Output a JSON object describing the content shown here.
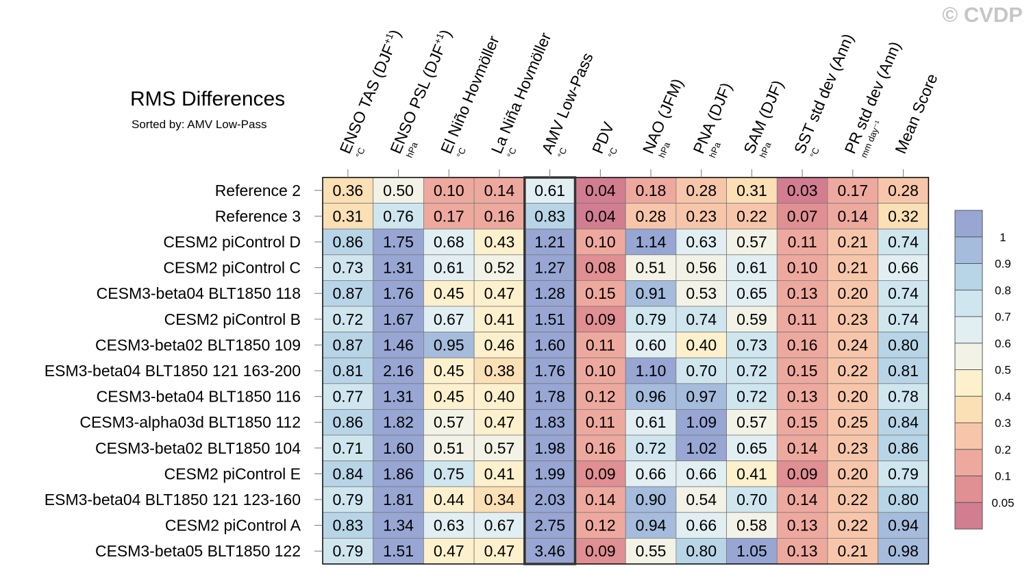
{
  "title": "RMS Differences",
  "subtitle": "Sorted by: AMV Low-Pass",
  "watermark": "© CVDP",
  "chart_data": {
    "type": "heatmap",
    "title": "RMS Differences",
    "subtitle": "Sorted by: AMV Low-Pass",
    "columns": [
      {
        "label": "ENSO TAS (DJF",
        "sup": "+1",
        "close": ")",
        "unit": "°C"
      },
      {
        "label": "ENSO PSL (DJF",
        "sup": "+1",
        "close": ")",
        "unit": "hPa"
      },
      {
        "label": "El Niño Hovmöller",
        "sup": "",
        "close": "",
        "unit": "°C"
      },
      {
        "label": "La Niña Hovmöller",
        "sup": "",
        "close": "",
        "unit": "°C"
      },
      {
        "label": "AMV Low-Pass",
        "sup": "",
        "close": "",
        "unit": "°C"
      },
      {
        "label": "PDV",
        "sup": "",
        "close": "",
        "unit": "°C"
      },
      {
        "label": "NAO (JFM)",
        "sup": "",
        "close": "",
        "unit": "hPa"
      },
      {
        "label": "PNA (DJF)",
        "sup": "",
        "close": "",
        "unit": "hPa"
      },
      {
        "label": "SAM (DJF)",
        "sup": "",
        "close": "",
        "unit": "hPa"
      },
      {
        "label": "SST std dev (Ann)",
        "sup": "",
        "close": "",
        "unit": "°C"
      },
      {
        "label": "PR std dev (Ann)",
        "sup": "",
        "close": "",
        "unit": "mm day⁻¹"
      },
      {
        "label": "Mean Score",
        "sup": "",
        "close": "",
        "unit": ""
      }
    ],
    "rows": [
      "Reference 2",
      "Reference 3",
      "CESM2 piControl D",
      "CESM2 piControl C",
      "CESM3-beta04 BLT1850 118",
      "CESM2 piControl B",
      "CESM3-beta02 BLT1850 109",
      "ESM3-beta04 BLT1850 121 163-200",
      "CESM3-beta04 BLT1850 116",
      "CESM3-alpha03d BLT1850 112",
      "CESM3-beta02 BLT1850 104",
      "CESM2 piControl E",
      "ESM3-beta04 BLT1850 121 123-160",
      "CESM2 piControl A",
      "CESM3-beta05 BLT1850 122"
    ],
    "values": [
      [
        "0.36",
        "0.50",
        "0.10",
        "0.14",
        "0.61",
        "0.04",
        "0.18",
        "0.28",
        "0.31",
        "0.03",
        "0.17",
        "0.28"
      ],
      [
        "0.31",
        "0.76",
        "0.17",
        "0.16",
        "0.83",
        "0.04",
        "0.28",
        "0.23",
        "0.22",
        "0.07",
        "0.14",
        "0.32"
      ],
      [
        "0.86",
        "1.75",
        "0.68",
        "0.43",
        "1.21",
        "0.10",
        "1.14",
        "0.63",
        "0.57",
        "0.11",
        "0.21",
        "0.74"
      ],
      [
        "0.73",
        "1.31",
        "0.61",
        "0.52",
        "1.27",
        "0.08",
        "0.51",
        "0.56",
        "0.61",
        "0.10",
        "0.21",
        "0.66"
      ],
      [
        "0.87",
        "1.76",
        "0.45",
        "0.47",
        "1.28",
        "0.15",
        "0.91",
        "0.53",
        "0.65",
        "0.13",
        "0.20",
        "0.74"
      ],
      [
        "0.72",
        "1.67",
        "0.67",
        "0.41",
        "1.51",
        "0.09",
        "0.79",
        "0.74",
        "0.59",
        "0.11",
        "0.23",
        "0.74"
      ],
      [
        "0.87",
        "1.46",
        "0.95",
        "0.46",
        "1.60",
        "0.11",
        "0.60",
        "0.40",
        "0.73",
        "0.16",
        "0.24",
        "0.80"
      ],
      [
        "0.81",
        "2.16",
        "0.45",
        "0.38",
        "1.76",
        "0.10",
        "1.10",
        "0.70",
        "0.72",
        "0.15",
        "0.22",
        "0.81"
      ],
      [
        "0.77",
        "1.31",
        "0.45",
        "0.40",
        "1.78",
        "0.12",
        "0.96",
        "0.97",
        "0.72",
        "0.13",
        "0.20",
        "0.78"
      ],
      [
        "0.86",
        "1.82",
        "0.57",
        "0.47",
        "1.83",
        "0.11",
        "0.61",
        "1.09",
        "0.57",
        "0.15",
        "0.25",
        "0.84"
      ],
      [
        "0.71",
        "1.60",
        "0.51",
        "0.57",
        "1.98",
        "0.16",
        "0.72",
        "1.02",
        "0.65",
        "0.14",
        "0.23",
        "0.86"
      ],
      [
        "0.84",
        "1.86",
        "0.75",
        "0.41",
        "1.99",
        "0.09",
        "0.66",
        "0.66",
        "0.41",
        "0.09",
        "0.20",
        "0.79"
      ],
      [
        "0.79",
        "1.81",
        "0.44",
        "0.34",
        "2.03",
        "0.14",
        "0.90",
        "0.54",
        "0.70",
        "0.14",
        "0.22",
        "0.80"
      ],
      [
        "0.83",
        "1.34",
        "0.63",
        "0.67",
        "2.75",
        "0.12",
        "0.94",
        "0.66",
        "0.58",
        "0.13",
        "0.22",
        "0.94"
      ],
      [
        "0.79",
        "1.51",
        "0.47",
        "0.47",
        "3.46",
        "0.09",
        "0.55",
        "0.80",
        "1.05",
        "0.13",
        "0.21",
        "0.98"
      ]
    ],
    "highlighted_column": "AMV Low-Pass",
    "colorbar": {
      "levels": [
        0.05,
        0.1,
        0.2,
        0.3,
        0.4,
        0.5,
        0.6,
        0.7,
        0.8,
        0.9,
        1
      ],
      "tick_labels": [
        "0.05",
        "0.1",
        "0.2",
        "0.3",
        "0.4",
        "0.5",
        "0.6",
        "0.7",
        "0.8",
        "0.9",
        "1"
      ],
      "colors": [
        "#d27d90",
        "#e08f92",
        "#eea99f",
        "#f7c6aa",
        "#fbdfb5",
        "#fcf0cd",
        "#f2f2e6",
        "#e2eff2",
        "#cfe6ef",
        "#b8d5e7",
        "#a5bcdc",
        "#97a6d3"
      ]
    }
  }
}
